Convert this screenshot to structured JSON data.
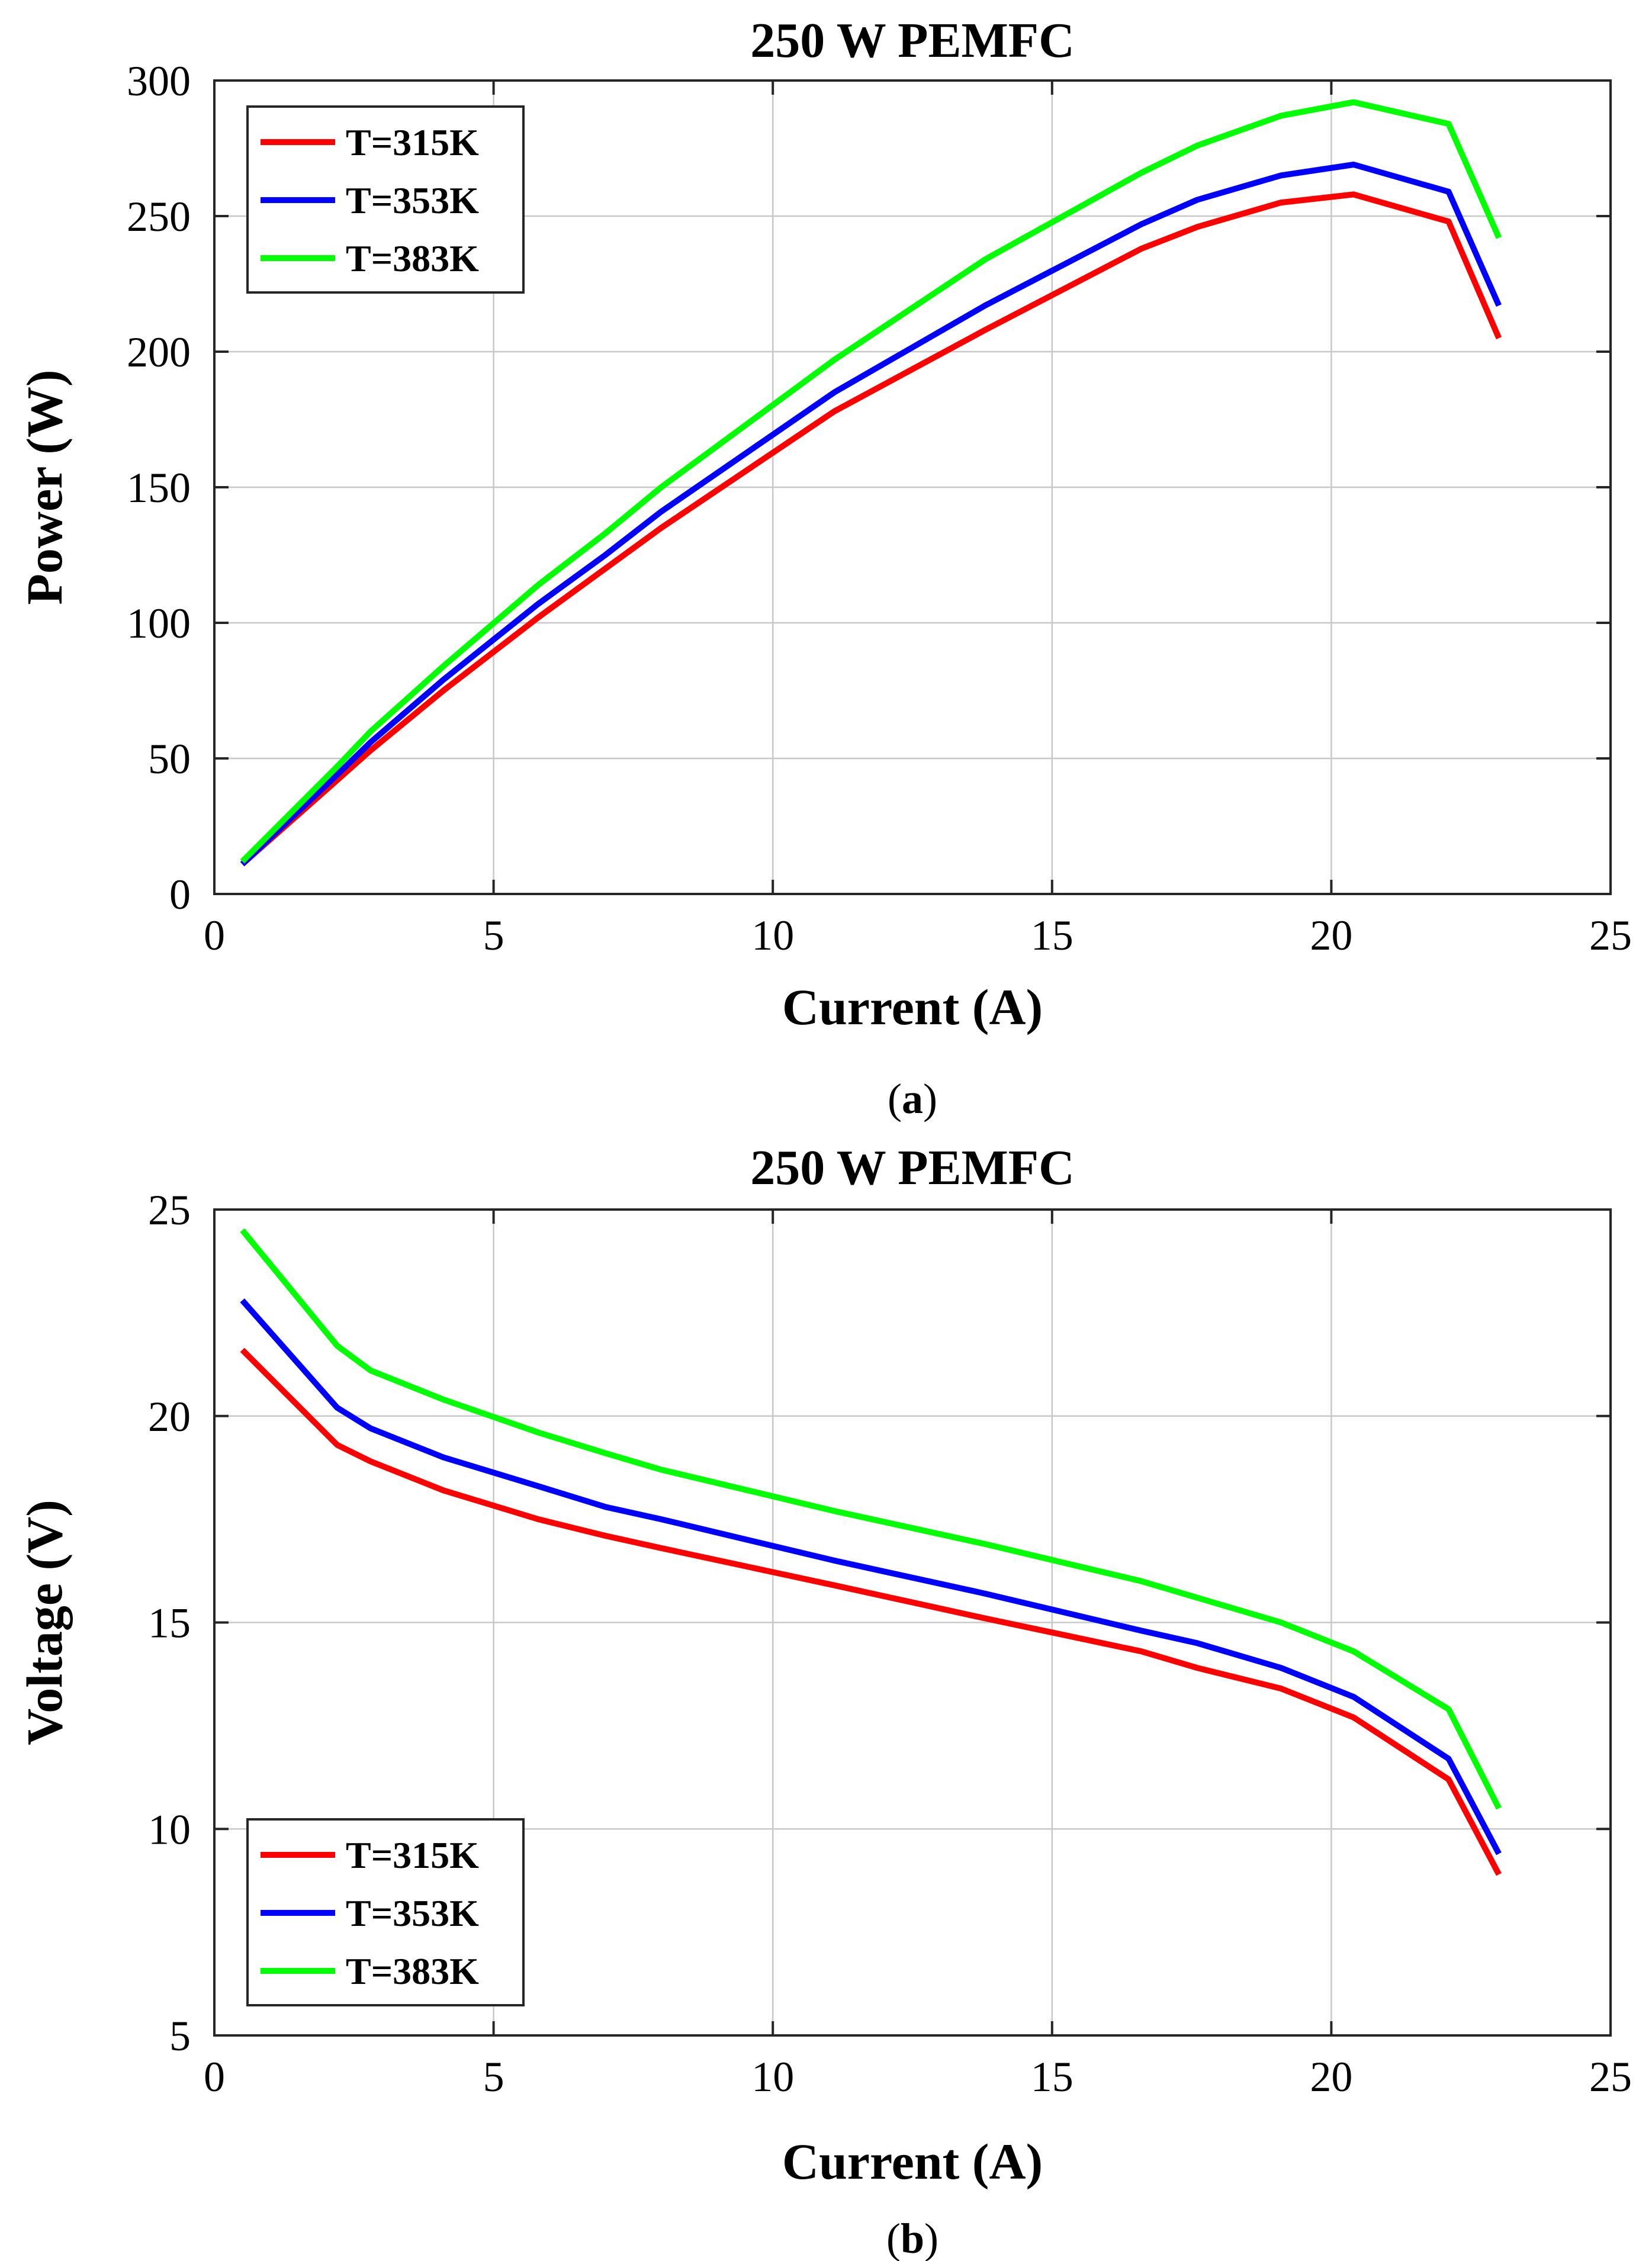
{
  "chart_data": [
    {
      "type": "line",
      "panel": "(a)",
      "title": "250 W PEMFC",
      "xlabel": "Current (A)",
      "ylabel": "Power (W)",
      "xlim": [
        0,
        25
      ],
      "ylim": [
        0,
        300
      ],
      "xticks": [
        0,
        5,
        10,
        15,
        20,
        25
      ],
      "yticks": [
        0,
        50,
        100,
        150,
        200,
        250,
        300
      ],
      "grid": true,
      "legend_position": "top-left",
      "x": [
        0.5,
        2.2,
        2.8,
        4.1,
        5.8,
        7.0,
        8.0,
        11.1,
        13.8,
        16.6,
        17.6,
        19.1,
        20.4,
        22.1,
        23.0
      ],
      "series": [
        {
          "name": "T=315K",
          "color": "#ff0000",
          "values": [
            11,
            42,
            53,
            75,
            102,
            120,
            135,
            178,
            208,
            238,
            246,
            255,
            258,
            248,
            205
          ]
        },
        {
          "name": "T=353K",
          "color": "#0000ff",
          "values": [
            11,
            44,
            56,
            79,
            107,
            125,
            141,
            185,
            217,
            247,
            256,
            265,
            269,
            259,
            217
          ]
        },
        {
          "name": "T=383K",
          "color": "#00ff00",
          "values": [
            12,
            47,
            60,
            84,
            114,
            133,
            150,
            197,
            234,
            266,
            276,
            287,
            292,
            284,
            242
          ]
        }
      ]
    },
    {
      "type": "line",
      "panel": "(b)",
      "title": "250 W PEMFC",
      "xlabel": "Current (A)",
      "ylabel": "Voltage (V)",
      "xlim": [
        0,
        25
      ],
      "ylim": [
        5,
        25
      ],
      "xticks": [
        0,
        5,
        10,
        15,
        20,
        25
      ],
      "yticks": [
        5,
        10,
        15,
        20,
        25
      ],
      "grid": true,
      "legend_position": "bottom-left",
      "x": [
        0.5,
        2.2,
        2.8,
        4.1,
        5.8,
        7.0,
        8.0,
        11.1,
        13.8,
        16.6,
        17.6,
        19.1,
        20.4,
        22.1,
        23.0
      ],
      "series": [
        {
          "name": "T=315K",
          "color": "#ff0000",
          "values": [
            21.6,
            19.3,
            18.9,
            18.2,
            17.5,
            17.1,
            16.8,
            15.9,
            15.1,
            14.3,
            13.9,
            13.4,
            12.7,
            11.2,
            8.9
          ]
        },
        {
          "name": "T=353K",
          "color": "#0000ff",
          "values": [
            22.8,
            20.2,
            19.7,
            19.0,
            18.3,
            17.8,
            17.5,
            16.5,
            15.7,
            14.8,
            14.5,
            13.9,
            13.2,
            11.7,
            9.4
          ]
        },
        {
          "name": "T=383K",
          "color": "#00ff00",
          "values": [
            24.5,
            21.7,
            21.1,
            20.4,
            19.6,
            19.1,
            18.7,
            17.7,
            16.9,
            16.0,
            15.6,
            15.0,
            14.3,
            12.9,
            10.5
          ]
        }
      ]
    }
  ]
}
